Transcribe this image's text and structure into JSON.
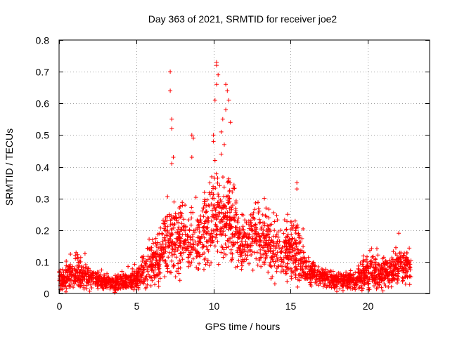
{
  "chart_data": {
    "type": "scatter",
    "title": "Day 363 of 2021, SRMTID for receiver joe2",
    "xlabel": "GPS time / hours",
    "ylabel": "SRMTID / TECUs",
    "xlim": [
      0,
      24
    ],
    "ylim": [
      0,
      0.8
    ],
    "x_ticks": [
      0,
      5,
      10,
      15,
      20
    ],
    "x_tick_labels": [
      "0",
      "5",
      "10",
      "15",
      "20"
    ],
    "y_ticks": [
      0,
      0.1,
      0.2,
      0.3,
      0.4,
      0.5,
      0.6,
      0.7,
      0.8
    ],
    "y_tick_labels": [
      "0",
      "0.1",
      "0.2",
      "0.3",
      "0.4",
      "0.5",
      "0.6",
      "0.7",
      "0.8"
    ],
    "grid": true,
    "marker": "+",
    "series": [
      {
        "name": "SRMTID",
        "color": "#ff0000",
        "profile": [
          {
            "x": 0.0,
            "y": 0.045,
            "spread": 0.03
          },
          {
            "x": 0.5,
            "y": 0.05,
            "spread": 0.03
          },
          {
            "x": 1.2,
            "y": 0.06,
            "spread": 0.045
          },
          {
            "x": 2.0,
            "y": 0.05,
            "spread": 0.03
          },
          {
            "x": 3.0,
            "y": 0.035,
            "spread": 0.025
          },
          {
            "x": 4.0,
            "y": 0.035,
            "spread": 0.025
          },
          {
            "x": 5.0,
            "y": 0.045,
            "spread": 0.03
          },
          {
            "x": 5.8,
            "y": 0.08,
            "spread": 0.05
          },
          {
            "x": 6.5,
            "y": 0.12,
            "spread": 0.07
          },
          {
            "x": 7.0,
            "y": 0.17,
            "spread": 0.1
          },
          {
            "x": 8.0,
            "y": 0.17,
            "spread": 0.08
          },
          {
            "x": 9.0,
            "y": 0.17,
            "spread": 0.08
          },
          {
            "x": 10.0,
            "y": 0.24,
            "spread": 0.12
          },
          {
            "x": 11.0,
            "y": 0.25,
            "spread": 0.12
          },
          {
            "x": 11.7,
            "y": 0.16,
            "spread": 0.07
          },
          {
            "x": 12.5,
            "y": 0.17,
            "spread": 0.08
          },
          {
            "x": 13.5,
            "y": 0.16,
            "spread": 0.08
          },
          {
            "x": 14.5,
            "y": 0.13,
            "spread": 0.08
          },
          {
            "x": 15.5,
            "y": 0.13,
            "spread": 0.09
          },
          {
            "x": 16.0,
            "y": 0.07,
            "spread": 0.04
          },
          {
            "x": 17.0,
            "y": 0.05,
            "spread": 0.025
          },
          {
            "x": 18.0,
            "y": 0.04,
            "spread": 0.025
          },
          {
            "x": 19.0,
            "y": 0.04,
            "spread": 0.025
          },
          {
            "x": 20.0,
            "y": 0.07,
            "spread": 0.05
          },
          {
            "x": 21.0,
            "y": 0.065,
            "spread": 0.04
          },
          {
            "x": 22.0,
            "y": 0.08,
            "spread": 0.045
          },
          {
            "x": 22.8,
            "y": 0.09,
            "spread": 0.045
          }
        ],
        "peaks": [
          {
            "x": 7.2,
            "y": 0.7
          },
          {
            "x": 7.2,
            "y": 0.64
          },
          {
            "x": 7.3,
            "y": 0.55
          },
          {
            "x": 7.3,
            "y": 0.52
          },
          {
            "x": 7.4,
            "y": 0.43
          },
          {
            "x": 7.3,
            "y": 0.41
          },
          {
            "x": 8.6,
            "y": 0.5
          },
          {
            "x": 8.7,
            "y": 0.49
          },
          {
            "x": 8.6,
            "y": 0.43
          },
          {
            "x": 10.2,
            "y": 0.73
          },
          {
            "x": 10.2,
            "y": 0.72
          },
          {
            "x": 10.3,
            "y": 0.69
          },
          {
            "x": 10.2,
            "y": 0.66
          },
          {
            "x": 10.1,
            "y": 0.61
          },
          {
            "x": 10.8,
            "y": 0.66
          },
          {
            "x": 10.9,
            "y": 0.64
          },
          {
            "x": 11.0,
            "y": 0.61
          },
          {
            "x": 10.8,
            "y": 0.58
          },
          {
            "x": 11.1,
            "y": 0.54
          },
          {
            "x": 10.6,
            "y": 0.55
          },
          {
            "x": 10.5,
            "y": 0.51
          },
          {
            "x": 10.0,
            "y": 0.5
          },
          {
            "x": 10.0,
            "y": 0.48
          },
          {
            "x": 10.7,
            "y": 0.47
          },
          {
            "x": 10.5,
            "y": 0.44
          },
          {
            "x": 10.1,
            "y": 0.42
          },
          {
            "x": 15.4,
            "y": 0.35
          },
          {
            "x": 15.4,
            "y": 0.33
          },
          {
            "x": 22.0,
            "y": 0.19
          },
          {
            "x": 13.3,
            "y": 0.3
          },
          {
            "x": 14.8,
            "y": 0.25
          }
        ],
        "n_points": 2600
      }
    ]
  }
}
